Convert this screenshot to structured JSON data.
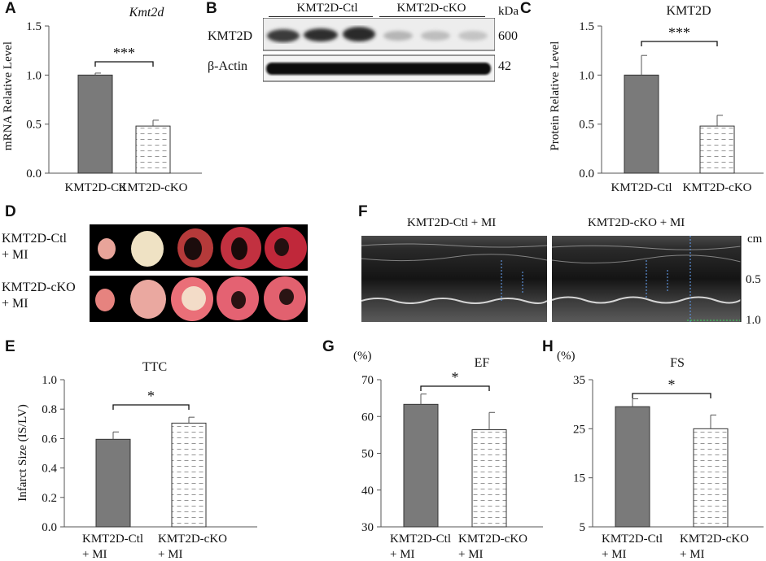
{
  "colors": {
    "ctl_bar": "#7a7a7a",
    "cko_fill": "#ffffff",
    "axis": "#555555",
    "heart_bg": "#000000",
    "echo_bg": "#1a1a1a"
  },
  "panels": {
    "A": {
      "letter": "A",
      "title": "Kmt2d",
      "ylabel": "mRNA Relative Level",
      "yticks": [
        "0.0",
        "0.5",
        "1.0",
        "1.5"
      ],
      "categories": [
        "KMT2D-Ctl",
        "KMT2D-cKO"
      ],
      "sig": "***"
    },
    "B": {
      "letter": "B",
      "groups": [
        "KMT2D-Ctl",
        "KMT2D-cKO"
      ],
      "unit": "kDa",
      "rows": [
        {
          "label": "KMT2D",
          "kda": "600"
        },
        {
          "label": "β-Actin",
          "kda": "42"
        }
      ]
    },
    "C": {
      "letter": "C",
      "title": "KMT2D",
      "ylabel": "Protein Relative Level",
      "yticks": [
        "0.0",
        "0.5",
        "1.0",
        "1.5"
      ],
      "categories": [
        "KMT2D-Ctl",
        "KMT2D-cKO"
      ],
      "sig": "***"
    },
    "D": {
      "letter": "D",
      "rows": [
        {
          "line1": "KMT2D-Ctl",
          "line2": "+ MI"
        },
        {
          "line1": "KMT2D-cKO",
          "line2": "+ MI"
        }
      ]
    },
    "F": {
      "letter": "F",
      "labels": [
        "KMT2D-Ctl + MI",
        "KMT2D-cKO + MI"
      ],
      "scale_unit": "cm",
      "scale_ticks": [
        "0.5",
        "1.0"
      ]
    },
    "E": {
      "letter": "E",
      "title": "TTC",
      "ylabel": "Infarct Size (IS/LV)",
      "yticks": [
        "0.0",
        "0.2",
        "0.4",
        "0.6",
        "0.8",
        "1.0"
      ],
      "categories": [
        {
          "line1": "KMT2D-Ctl",
          "line2": "+ MI"
        },
        {
          "line1": "KMT2D-cKO",
          "line2": "+ MI"
        }
      ],
      "sig": "*"
    },
    "G": {
      "letter": "G",
      "title": "EF",
      "unit": "(%)",
      "yticks": [
        "30",
        "40",
        "50",
        "60",
        "70"
      ],
      "categories": [
        {
          "line1": "KMT2D-Ctl",
          "line2": "+ MI"
        },
        {
          "line1": "KMT2D-cKO",
          "line2": "+ MI"
        }
      ],
      "sig": "*"
    },
    "H": {
      "letter": "H",
      "title": "FS",
      "unit": "(%)",
      "yticks": [
        "5",
        "15",
        "25",
        "35"
      ],
      "categories": [
        {
          "line1": "KMT2D-Ctl",
          "line2": "+ MI"
        },
        {
          "line1": "KMT2D-cKO",
          "line2": "+ MI"
        }
      ],
      "sig": "*"
    }
  },
  "chart_data": [
    {
      "id": "A",
      "type": "bar",
      "title": "Kmt2d",
      "ylabel": "mRNA Relative Level",
      "categories": [
        "KMT2D-Ctl",
        "KMT2D-cKO"
      ],
      "values": [
        1.0,
        0.48
      ],
      "errors": [
        0.02,
        0.06
      ],
      "ylim": [
        0,
        1.5
      ]
    },
    {
      "id": "C",
      "type": "bar",
      "title": "KMT2D",
      "ylabel": "Protein Relative Level",
      "categories": [
        "KMT2D-Ctl",
        "KMT2D-cKO"
      ],
      "values": [
        1.0,
        0.48
      ],
      "errors": [
        0.2,
        0.11
      ],
      "ylim": [
        0,
        1.5
      ]
    },
    {
      "id": "E",
      "type": "bar",
      "title": "TTC",
      "ylabel": "Infarct Size (IS/LV)",
      "categories": [
        "KMT2D-Ctl + MI",
        "KMT2D-cKO + MI"
      ],
      "values": [
        0.595,
        0.705
      ],
      "errors": [
        0.05,
        0.04
      ],
      "ylim": [
        0,
        1.0
      ]
    },
    {
      "id": "G",
      "type": "bar",
      "title": "EF",
      "ylabel": "(%)",
      "categories": [
        "KMT2D-Ctl + MI",
        "KMT2D-cKO + MI"
      ],
      "values": [
        63.3,
        56.4
      ],
      "errors": [
        2.8,
        4.7
      ],
      "ylim": [
        30,
        70
      ]
    },
    {
      "id": "H",
      "type": "bar",
      "title": "FS",
      "ylabel": "(%)",
      "categories": [
        "KMT2D-Ctl + MI",
        "KMT2D-cKO + MI"
      ],
      "values": [
        29.5,
        25.0
      ],
      "errors": [
        1.6,
        2.8
      ],
      "ylim": [
        5,
        35
      ]
    }
  ]
}
